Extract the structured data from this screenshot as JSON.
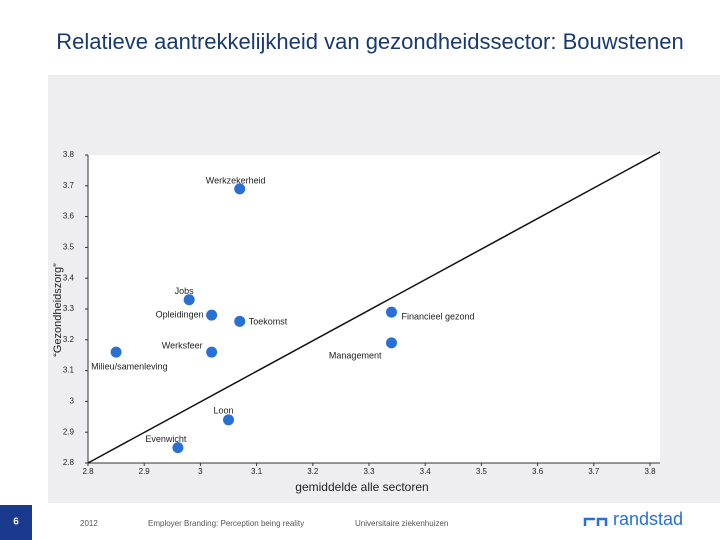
{
  "chart_data": {
    "type": "scatter",
    "title": "Relatieve aantrekkelijkheid van gezondheidssector: Bouwstenen",
    "x_label": "gemiddelde alle sectoren",
    "y_label": "“Gezondheidszorg”",
    "labels": [
      "Werkzekerheid",
      "Jobs",
      "Opleidingen",
      "Toekomst",
      "Financieel gezond",
      "Werksfeer",
      "Management",
      "Milieu/samenleving",
      "Loon",
      "Evenwicht"
    ],
    "x": [
      3.07,
      2.98,
      3.02,
      3.07,
      3.34,
      3.02,
      3.34,
      2.85,
      3.05,
      2.96
    ],
    "values": [
      3.69,
      3.33,
      3.28,
      3.26,
      3.29,
      3.16,
      3.19,
      3.16,
      2.94,
      2.85
    ],
    "color": "#2a6fd6",
    "xlim": [
      2.8,
      3.8
    ],
    "ylim": [
      2.8,
      3.8
    ],
    "xticks": [
      2.8,
      2.9,
      3,
      3.1,
      3.2,
      3.3,
      3.4,
      3.5,
      3.6,
      3.7,
      3.8
    ],
    "yticks": [
      2.8,
      2.9,
      3,
      3.1,
      3.2,
      3.3,
      3.4,
      3.5,
      3.6,
      3.7,
      3.8
    ],
    "diagonal": true
  },
  "footer": {
    "page": "6",
    "year": "2012",
    "subtitle": "Employer Branding: Perception being reality",
    "segment": "Universitaire ziekenhuizen",
    "brand": "randstad"
  }
}
